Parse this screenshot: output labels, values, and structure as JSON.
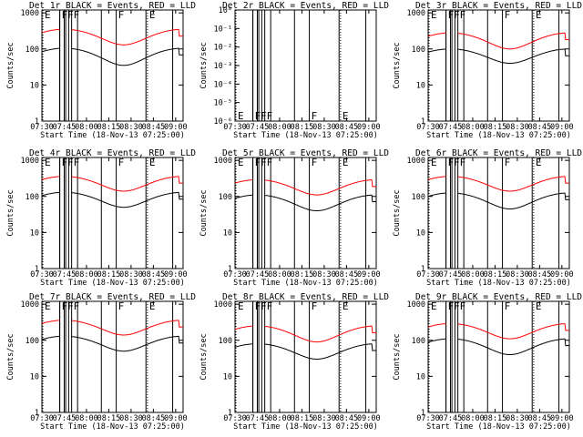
{
  "chart_data": [
    {
      "type": "line",
      "title": "Det 1r BLACK = Events, RED = LLD",
      "ylabel": "Counts/sec",
      "xlabel": "Start Time (18-Nov-13 07:25:00)",
      "x_ticks": [
        "07:30",
        "07:45",
        "08:00",
        "08:15",
        "08:30",
        "08:45",
        "09:00"
      ],
      "y_ticks": [
        "1",
        "10",
        "100",
        "1000"
      ],
      "ylim": [
        1,
        1200
      ],
      "scale": "log",
      "markers": [
        {
          "time": "07:25",
          "label": "E"
        },
        {
          "time": "07:42",
          "label": "F"
        },
        {
          "time": "07:46",
          "label": "F"
        },
        {
          "time": "07:50",
          "label": "F"
        },
        {
          "time": "08:20",
          "label": "F"
        },
        {
          "time": "08:41",
          "label": "E"
        }
      ],
      "series": [
        {
          "name": "Events",
          "color": "#000000",
          "values": {
            "base": 70,
            "amp": 35
          }
        },
        {
          "name": "LLD",
          "color": "#ff0000",
          "values": {
            "base": 240,
            "amp": 110
          }
        }
      ]
    },
    {
      "type": "line",
      "title": "Det 2r BLACK = Events, RED = LLD",
      "ylabel": "Counts/sec",
      "xlabel": "Start Time (18-Nov-13 07:25:00)",
      "x_ticks": [
        "07:30",
        "07:45",
        "08:00",
        "08:15",
        "08:30",
        "08:45",
        "09:00"
      ],
      "y_ticks": [
        "10⁻⁶",
        "10⁻⁵",
        "10⁻⁴",
        "10⁻³",
        "10⁻²",
        "10⁻¹",
        "10⁰"
      ],
      "scale": "log",
      "markers": [
        {
          "time": "07:25",
          "label": "E"
        },
        {
          "time": "07:42",
          "label": "F"
        },
        {
          "time": "07:46",
          "label": "F"
        },
        {
          "time": "07:50",
          "label": "F"
        },
        {
          "time": "08:20",
          "label": "F"
        },
        {
          "time": "08:41",
          "label": "E"
        }
      ],
      "series": []
    },
    {
      "type": "line",
      "title": "Det 3r BLACK = Events, RED = LLD",
      "ylabel": "Counts/sec",
      "xlabel": "Start Time (18-Nov-13 07:25:00)",
      "x_ticks": [
        "07:30",
        "07:45",
        "08:00",
        "08:15",
        "08:30",
        "08:45",
        "09:00"
      ],
      "y_ticks": [
        "1",
        "10",
        "100",
        "1000"
      ],
      "scale": "log",
      "markers": [
        {
          "time": "07:25",
          "label": "E"
        },
        {
          "time": "07:42",
          "label": "F"
        },
        {
          "time": "07:46",
          "label": "F"
        },
        {
          "time": "07:50",
          "label": "F"
        },
        {
          "time": "08:20",
          "label": "F"
        },
        {
          "time": "08:41",
          "label": "E"
        }
      ],
      "series": [
        {
          "name": "Events",
          "color": "#000000",
          "values": {
            "base": 70,
            "amp": 30
          }
        },
        {
          "name": "LLD",
          "color": "#ff0000",
          "values": {
            "base": 190,
            "amp": 90
          }
        }
      ]
    },
    {
      "type": "line",
      "title": "Det 4r BLACK = Events, RED = LLD",
      "ylabel": "Counts/sec",
      "xlabel": "Start Time (18-Nov-13 07:25:00)",
      "x_ticks": [
        "07:30",
        "07:45",
        "08:00",
        "08:15",
        "08:30",
        "08:45",
        "09:00"
      ],
      "y_ticks": [
        "1",
        "10",
        "100",
        "1000"
      ],
      "scale": "log",
      "markers": [
        {
          "time": "07:25",
          "label": "E"
        },
        {
          "time": "07:42",
          "label": "F"
        },
        {
          "time": "07:46",
          "label": "F"
        },
        {
          "time": "07:50",
          "label": "F"
        },
        {
          "time": "08:20",
          "label": "F"
        },
        {
          "time": "08:41",
          "label": "E"
        }
      ],
      "series": [
        {
          "name": "Events",
          "color": "#000000",
          "values": {
            "base": 90,
            "amp": 40
          }
        },
        {
          "name": "LLD",
          "color": "#ff0000",
          "values": {
            "base": 250,
            "amp": 110
          }
        }
      ]
    },
    {
      "type": "line",
      "title": "Det 5r BLACK = Events, RED = LLD",
      "ylabel": "Counts/sec",
      "xlabel": "Start Time (18-Nov-13 07:25:00)",
      "x_ticks": [
        "07:30",
        "07:45",
        "08:00",
        "08:15",
        "08:30",
        "08:45",
        "09:00"
      ],
      "y_ticks": [
        "1",
        "10",
        "100",
        "1000"
      ],
      "scale": "log",
      "markers": [
        {
          "time": "07:25",
          "label": "E"
        },
        {
          "time": "07:42",
          "label": "F"
        },
        {
          "time": "07:46",
          "label": "F"
        },
        {
          "time": "07:50",
          "label": "F"
        },
        {
          "time": "08:20",
          "label": "F"
        },
        {
          "time": "08:41",
          "label": "E"
        }
      ],
      "series": [
        {
          "name": "Events",
          "color": "#000000",
          "values": {
            "base": 75,
            "amp": 35
          }
        },
        {
          "name": "LLD",
          "color": "#ff0000",
          "values": {
            "base": 200,
            "amp": 90
          }
        }
      ]
    },
    {
      "type": "line",
      "title": "Det 6r BLACK = Events, RED = LLD",
      "ylabel": "Counts/sec",
      "xlabel": "Start Time (18-Nov-13 07:25:00)",
      "x_ticks": [
        "07:30",
        "07:45",
        "08:00",
        "08:15",
        "08:30",
        "08:45",
        "09:00"
      ],
      "y_ticks": [
        "1",
        "10",
        "100",
        "1000"
      ],
      "scale": "log",
      "markers": [
        {
          "time": "07:25",
          "label": "E"
        },
        {
          "time": "07:42",
          "label": "F"
        },
        {
          "time": "07:46",
          "label": "F"
        },
        {
          "time": "07:50",
          "label": "F"
        },
        {
          "time": "08:20",
          "label": "F"
        },
        {
          "time": "08:41",
          "label": "E"
        }
      ],
      "series": [
        {
          "name": "Events",
          "color": "#000000",
          "values": {
            "base": 85,
            "amp": 40
          }
        },
        {
          "name": "LLD",
          "color": "#ff0000",
          "values": {
            "base": 250,
            "amp": 110
          }
        }
      ]
    },
    {
      "type": "line",
      "title": "Det 7r BLACK = Events, RED = LLD",
      "ylabel": "Counts/sec",
      "xlabel": "Start Time (18-Nov-13 07:25:00)",
      "x_ticks": [
        "07:30",
        "07:45",
        "08:00",
        "08:15",
        "08:30",
        "08:45",
        "09:00"
      ],
      "y_ticks": [
        "1",
        "10",
        "100",
        "1000"
      ],
      "scale": "log",
      "markers": [
        {
          "time": "07:25",
          "label": "E"
        },
        {
          "time": "07:42",
          "label": "F"
        },
        {
          "time": "07:46",
          "label": "F"
        },
        {
          "time": "07:50",
          "label": "F"
        },
        {
          "time": "08:20",
          "label": "F"
        },
        {
          "time": "08:41",
          "label": "E"
        }
      ],
      "series": [
        {
          "name": "Events",
          "color": "#000000",
          "values": {
            "base": 90,
            "amp": 40
          }
        },
        {
          "name": "LLD",
          "color": "#ff0000",
          "values": {
            "base": 250,
            "amp": 110
          }
        }
      ]
    },
    {
      "type": "line",
      "title": "Det 8r BLACK = Events, RED = LLD",
      "ylabel": "Counts/sec",
      "xlabel": "Start Time (18-Nov-13 07:25:00)",
      "x_ticks": [
        "07:30",
        "07:45",
        "08:00",
        "08:15",
        "08:30",
        "08:45",
        "09:00"
      ],
      "y_ticks": [
        "1",
        "10",
        "100",
        "1000"
      ],
      "scale": "log",
      "markers": [
        {
          "time": "07:25",
          "label": "E"
        },
        {
          "time": "07:42",
          "label": "F"
        },
        {
          "time": "07:46",
          "label": "F"
        },
        {
          "time": "07:50",
          "label": "F"
        },
        {
          "time": "08:20",
          "label": "F"
        },
        {
          "time": "08:41",
          "label": "E"
        }
      ],
      "series": [
        {
          "name": "Events",
          "color": "#000000",
          "values": {
            "base": 55,
            "amp": 25
          }
        },
        {
          "name": "LLD",
          "color": "#ff0000",
          "values": {
            "base": 170,
            "amp": 80
          }
        }
      ]
    },
    {
      "type": "line",
      "title": "Det 9r BLACK = Events, RED = LLD",
      "ylabel": "Counts/sec",
      "xlabel": "Start Time (18-Nov-13 07:25:00)",
      "x_ticks": [
        "07:30",
        "07:45",
        "08:00",
        "08:15",
        "08:30",
        "08:45",
        "09:00"
      ],
      "y_ticks": [
        "1",
        "10",
        "100",
        "1000"
      ],
      "scale": "log",
      "markers": [
        {
          "time": "07:25",
          "label": "E"
        },
        {
          "time": "07:42",
          "label": "F"
        },
        {
          "time": "07:46",
          "label": "F"
        },
        {
          "time": "07:50",
          "label": "F"
        },
        {
          "time": "08:20",
          "label": "F"
        },
        {
          "time": "08:41",
          "label": "E"
        }
      ],
      "series": [
        {
          "name": "Events",
          "color": "#000000",
          "values": {
            "base": 75,
            "amp": 35
          }
        },
        {
          "name": "LLD",
          "color": "#ff0000",
          "values": {
            "base": 200,
            "amp": 90
          }
        }
      ]
    }
  ]
}
